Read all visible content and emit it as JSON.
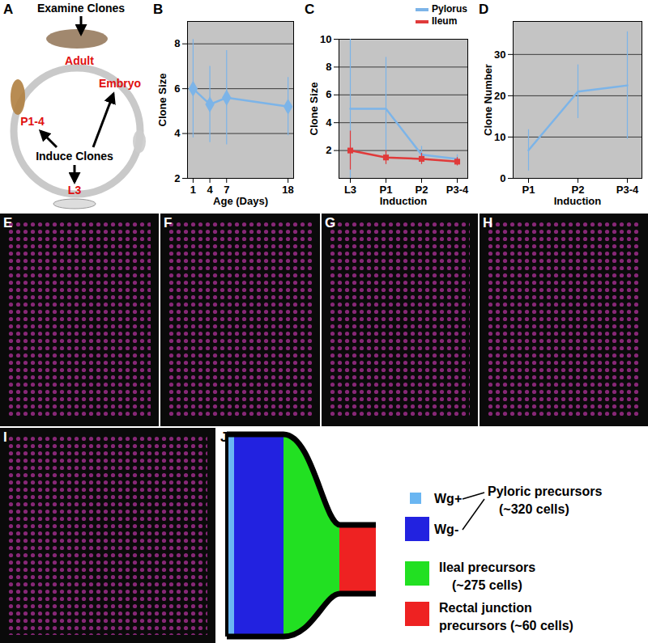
{
  "chart_data": [
    {
      "type": "line",
      "title": "B",
      "xlabel": "Age (Days)",
      "ylabel": "Clone Size",
      "x": [
        1,
        4,
        7,
        18
      ],
      "values": [
        6.0,
        5.3,
        5.6,
        5.2
      ],
      "errors": [
        2.2,
        1.7,
        2.1,
        1.3
      ],
      "color": "#7cb4e8",
      "marker": "diamond",
      "xlim": [
        0,
        19
      ],
      "xticks": [
        1,
        4,
        7,
        18
      ],
      "ylim": [
        2,
        9
      ],
      "yticks": [
        2,
        4,
        6,
        8
      ],
      "grid": true
    },
    {
      "type": "line",
      "title": "C",
      "xlabel": "Induction",
      "ylabel": "Clone Size",
      "categories": [
        "L3",
        "P1",
        "P2",
        "P3-4"
      ],
      "series": [
        {
          "name": "Pylorus",
          "color": "#7cb4e8",
          "values": [
            5.0,
            5.0,
            1.7,
            1.4
          ],
          "errors": [
            5.0,
            3.7,
            0.6,
            0.3
          ],
          "marker": "none"
        },
        {
          "name": "Ileum",
          "color": "#e03a3a",
          "values": [
            2.0,
            1.5,
            1.4,
            1.2
          ],
          "errors": [
            1.4,
            0.5,
            0.4,
            0.3
          ],
          "marker": "square"
        }
      ],
      "ylim": [
        0,
        10
      ],
      "yticks": [
        2,
        4,
        6,
        8,
        10
      ],
      "grid": true,
      "legend": "top-right"
    },
    {
      "type": "line",
      "title": "D",
      "xlabel": "Induction",
      "ylabel": "Clone Number",
      "categories": [
        "P1",
        "P2",
        "P3-4"
      ],
      "values": [
        6.8,
        21.0,
        22.5
      ],
      "errors": [
        5.0,
        6.5,
        13.0
      ],
      "color": "#7cb4e8",
      "marker": "none",
      "ylim": [
        0,
        38
      ],
      "yticks": [
        0,
        10,
        20,
        30
      ],
      "grid": true
    }
  ],
  "diagram_a": {
    "panel": "A",
    "examine": "Examine Clones",
    "induce": "Induce Clones",
    "stages": {
      "adult": "Adult",
      "pupa": "P1-4",
      "embryo": "Embryo",
      "larva": "L3"
    }
  },
  "micrographs": [
    "E",
    "F",
    "G",
    "H",
    "I"
  ],
  "diagram_j": {
    "panel": "J",
    "pyloric": {
      "lines": [
        "Pyloric precursors",
        "(~320 cells)"
      ],
      "subregions": [
        {
          "label": "Wg+",
          "color": "#6ab6f2"
        },
        {
          "label": "Wg-",
          "color": "#2222e0"
        }
      ]
    },
    "ileal": {
      "lines": [
        "Ileal precursors",
        "(~275 cells)"
      ],
      "color": "#22e022"
    },
    "rectal": {
      "lines": [
        "Rectal junction",
        "precursors (~60 cells)"
      ],
      "color": "#ee2222"
    }
  }
}
